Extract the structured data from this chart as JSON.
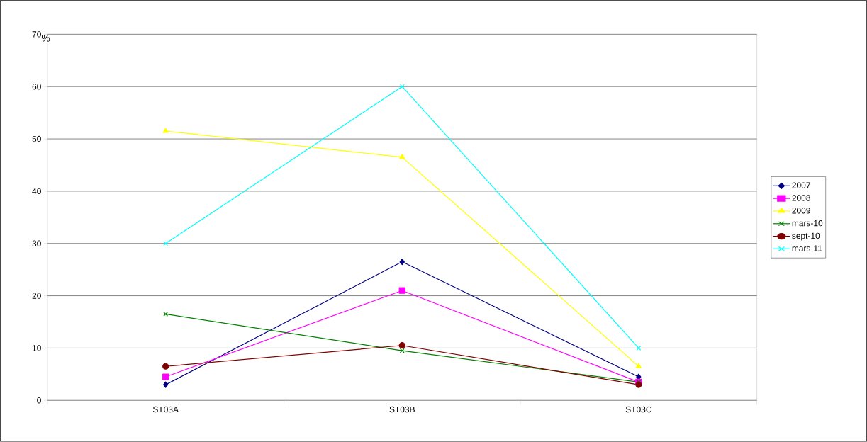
{
  "chart_data": {
    "type": "line",
    "ylabel": "%",
    "categories": [
      "ST03A",
      "ST03B",
      "ST03C"
    ],
    "series": [
      {
        "name": "2007",
        "color": "#000080",
        "marker": "diamond",
        "values": [
          3,
          26.5,
          4.5
        ]
      },
      {
        "name": "2008",
        "color": "#ff00ff",
        "marker": "square",
        "values": [
          4.5,
          21,
          3.5
        ]
      },
      {
        "name": "2009",
        "color": "#ffff00",
        "marker": "triangle",
        "values": [
          51.5,
          46.5,
          6.5
        ]
      },
      {
        "name": "mars-10",
        "color": "#008000",
        "marker": "cross",
        "values": [
          16.5,
          9.5,
          3.5
        ]
      },
      {
        "name": "sept-10",
        "color": "#800000",
        "marker": "circle",
        "values": [
          6.5,
          10.5,
          3
        ]
      },
      {
        "name": "mars-11",
        "color": "#00ffff",
        "marker": "cross",
        "values": [
          30,
          60,
          10
        ]
      }
    ],
    "ylim": [
      0,
      70
    ],
    "yticks": [
      0,
      10,
      20,
      30,
      40,
      50,
      60,
      70
    ],
    "grid": "y",
    "legend": "right",
    "line_style": "solid"
  }
}
